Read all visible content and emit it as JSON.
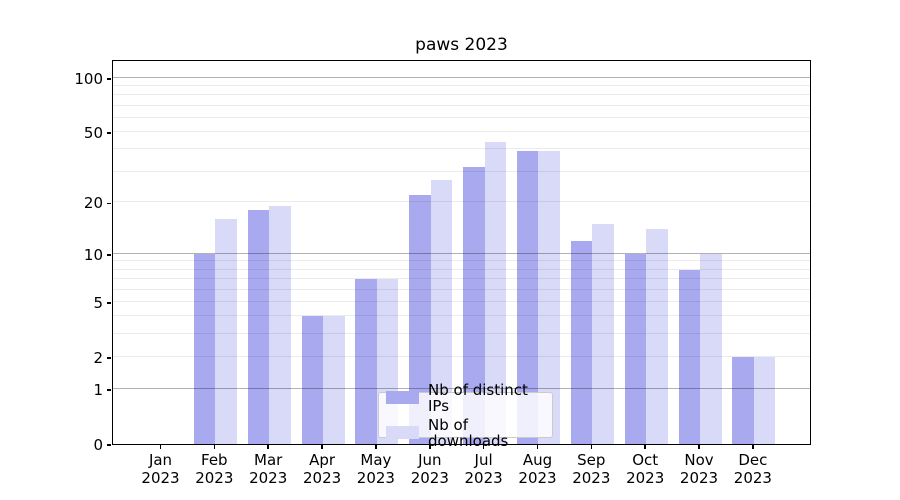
{
  "title": "paws 2023",
  "chart_data": {
    "type": "bar",
    "title": "paws 2023",
    "categories": [
      "Jan",
      "Feb",
      "Mar",
      "Apr",
      "May",
      "Jun",
      "Jul",
      "Aug",
      "Sep",
      "Oct",
      "Nov",
      "Dec"
    ],
    "year_label": "2023",
    "series": [
      {
        "name": "Nb of distinct IPs",
        "color": "#a9a9f0",
        "values": [
          0,
          10,
          18,
          4,
          7,
          22,
          32,
          39,
          12,
          10,
          8,
          2
        ]
      },
      {
        "name": "Nb of downloads",
        "color": "#d9d9f8",
        "values": [
          0,
          16,
          19,
          4,
          7,
          27,
          44,
          39,
          15,
          14,
          10,
          2
        ]
      }
    ],
    "xlabel": "",
    "ylabel": "",
    "y_scale": "log10(value+1)",
    "y_ticks": [
      0,
      1,
      2,
      5,
      10,
      20,
      50,
      100
    ],
    "ylim": [
      0,
      127
    ],
    "gridlines": {
      "major": [
        1,
        10,
        100
      ],
      "minor": [
        2,
        3,
        4,
        5,
        6,
        7,
        8,
        9,
        20,
        30,
        40,
        50,
        60,
        70,
        80,
        90
      ]
    },
    "grid": true,
    "legend_position": "lower center",
    "legend_entries": [
      "Nb of distinct IPs",
      "Nb of downloads"
    ]
  },
  "colors": {
    "background": "#ffffff",
    "spine": "#000000",
    "bar_distinct_ips": "#a9a9f0",
    "bar_downloads": "#d9d9f8",
    "legend_border": "#cbcbcb"
  }
}
